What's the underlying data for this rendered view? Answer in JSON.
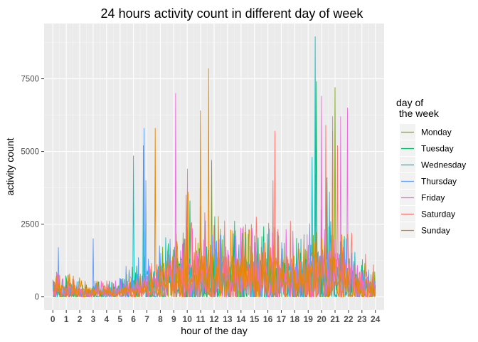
{
  "chart_data": {
    "type": "line",
    "title": "24 hours activity count in different day of week",
    "xlabel": "hour of the day",
    "ylabel": "activity count",
    "x_ticks": [
      "0",
      "1",
      "2",
      "3",
      "4",
      "5",
      "6",
      "7",
      "8",
      "9",
      "10",
      "11",
      "12",
      "13",
      "14",
      "15",
      "16",
      "17",
      "18",
      "19",
      "20",
      "21",
      "22",
      "23",
      "24"
    ],
    "y_ticks": [
      0,
      2500,
      5000,
      7500
    ],
    "y_tick_labels": [
      "0",
      "2500",
      "5000",
      "7500"
    ],
    "xlim": [
      -0.65,
      24.65
    ],
    "ylim": [
      -450,
      9400
    ],
    "grid": true,
    "legend_title_lines": [
      "day of",
      " the week"
    ],
    "legend_position": "right",
    "series": [
      {
        "name": "Monday",
        "color": "#7CAE00",
        "base": [
          250,
          150,
          120,
          150,
          120,
          200,
          350,
          450,
          500,
          600,
          700,
          800,
          750,
          650,
          600,
          600,
          650,
          600,
          550,
          600,
          800,
          700,
          500,
          350,
          250
        ],
        "peaks": [
          [
            11.8,
            4700
          ],
          [
            19.5,
            4200
          ],
          [
            21.0,
            7200
          ],
          [
            9.7,
            2200
          ],
          [
            16.8,
            2100
          ]
        ]
      },
      {
        "name": "Tuesday",
        "color": "#00BE67",
        "base": [
          250,
          200,
          150,
          150,
          150,
          200,
          350,
          500,
          550,
          650,
          700,
          800,
          750,
          700,
          650,
          650,
          700,
          650,
          600,
          650,
          850,
          700,
          550,
          350,
          250
        ],
        "peaks": [
          [
            19.6,
            7400
          ],
          [
            20.4,
            4100
          ],
          [
            10.2,
            3300
          ],
          [
            13.5,
            2600
          ],
          [
            6.8,
            2300
          ]
        ]
      },
      {
        "name": "Wednesday",
        "color": "#00BFC4",
        "base": [
          250,
          200,
          150,
          150,
          150,
          200,
          350,
          500,
          550,
          650,
          700,
          750,
          700,
          650,
          650,
          650,
          650,
          600,
          600,
          700,
          850,
          700,
          500,
          350,
          250
        ],
        "peaks": [
          [
            19.5,
            8950
          ],
          [
            6.0,
            4850
          ],
          [
            6.75,
            5200
          ],
          [
            19.3,
            4800
          ],
          [
            15.2,
            2100
          ]
        ]
      },
      {
        "name": "Thursday",
        "color": "#619CFF",
        "base": [
          300,
          200,
          150,
          150,
          150,
          200,
          400,
          550,
          550,
          650,
          700,
          750,
          700,
          650,
          650,
          650,
          650,
          600,
          600,
          700,
          850,
          750,
          550,
          400,
          300
        ],
        "peaks": [
          [
            6.8,
            5800
          ],
          [
            6.9,
            4000
          ],
          [
            20.6,
            3600
          ],
          [
            0.4,
            1700
          ],
          [
            3.0,
            2000
          ]
        ]
      },
      {
        "name": "Friday",
        "color": "#F564E3",
        "base": [
          250,
          200,
          150,
          150,
          150,
          200,
          350,
          500,
          550,
          700,
          750,
          800,
          750,
          700,
          650,
          650,
          650,
          650,
          650,
          700,
          900,
          800,
          600,
          400,
          300
        ],
        "peaks": [
          [
            9.15,
            7000
          ],
          [
            20.0,
            6900
          ],
          [
            20.8,
            6200
          ],
          [
            21.4,
            6200
          ],
          [
            21.9,
            6500
          ],
          [
            10.0,
            4400
          ]
        ]
      },
      {
        "name": "Saturday",
        "color": "#F8766D",
        "base": [
          300,
          200,
          150,
          150,
          150,
          150,
          250,
          350,
          450,
          550,
          650,
          800,
          800,
          750,
          700,
          750,
          800,
          750,
          700,
          700,
          850,
          800,
          650,
          450,
          300
        ],
        "peaks": [
          [
            16.5,
            5700
          ],
          [
            20.3,
            5900
          ],
          [
            21.2,
            5200
          ],
          [
            16.4,
            4000
          ],
          [
            11.0,
            3100
          ]
        ]
      },
      {
        "name": "Sunday",
        "color": "#E58700",
        "base": [
          300,
          250,
          200,
          150,
          150,
          150,
          200,
          250,
          400,
          500,
          650,
          800,
          850,
          750,
          700,
          750,
          750,
          650,
          600,
          650,
          750,
          700,
          550,
          400,
          300
        ],
        "peaks": [
          [
            11.6,
            7850
          ],
          [
            7.6,
            5800
          ],
          [
            11.0,
            6400
          ],
          [
            20.8,
            5700
          ],
          [
            10.05,
            3600
          ],
          [
            9.9,
            3500
          ]
        ]
      }
    ]
  }
}
